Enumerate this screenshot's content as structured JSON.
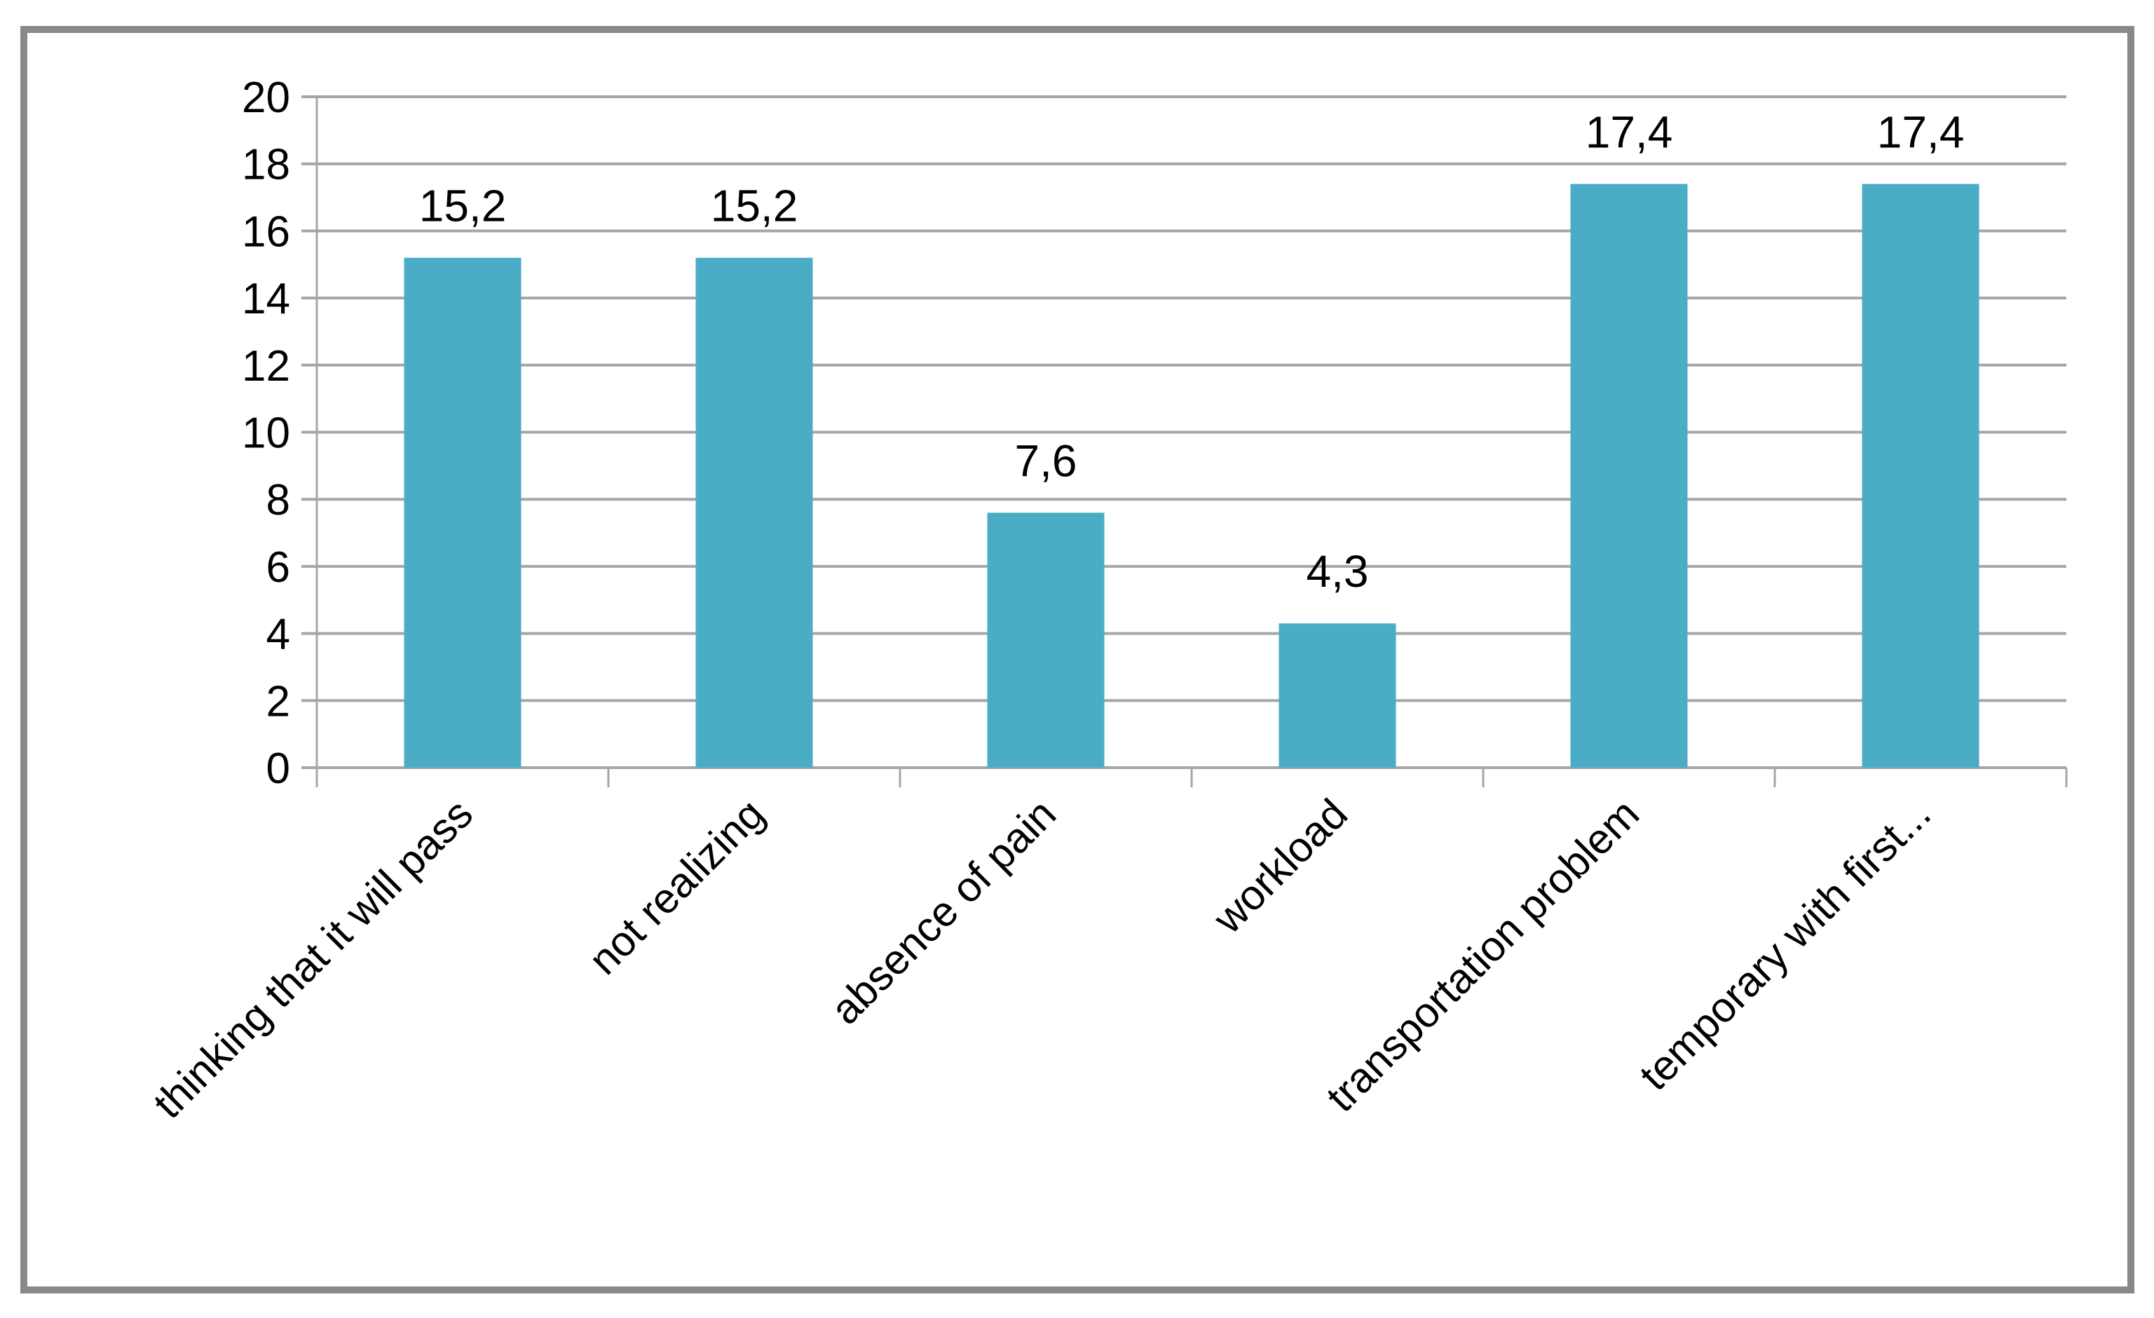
{
  "chart_data": {
    "type": "bar",
    "title": "",
    "xlabel": "",
    "ylabel": "",
    "categories": [
      "thinking that it will pass",
      "not realizing",
      "absence of pain",
      "workload",
      "transportation problem",
      "temporary with first..."
    ],
    "values": [
      15.2,
      15.2,
      7.6,
      4.3,
      17.4,
      17.4
    ],
    "data_labels": [
      "15,2",
      "15,2",
      "7,6",
      "4,3",
      "17,4",
      "17,4"
    ],
    "ylim": [
      0,
      20
    ],
    "yticks": [
      0,
      2,
      4,
      6,
      8,
      10,
      12,
      14,
      16,
      18,
      20
    ],
    "grid": true,
    "legend": "none",
    "colors": {
      "bar": "#4BACC6",
      "grid": "#A6A6A6",
      "frame": "#898989"
    }
  }
}
